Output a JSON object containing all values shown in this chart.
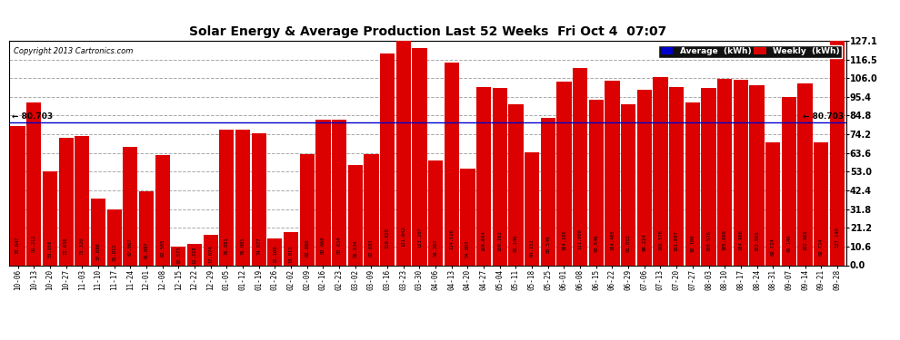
{
  "title": "Solar Energy & Average Production Last 52 Weeks  Fri Oct 4  07:07",
  "copyright": "Copyright 2013 Cartronics.com",
  "average_label": "Average  (kWh)",
  "weekly_label": "Weekly  (kWh)",
  "average_value": 80.703,
  "categories": [
    "10-06",
    "10-13",
    "10-20",
    "10-27",
    "11-03",
    "11-10",
    "11-17",
    "11-24",
    "12-01",
    "12-08",
    "12-15",
    "12-22",
    "12-29",
    "01-05",
    "01-12",
    "01-19",
    "01-26",
    "02-02",
    "02-09",
    "02-16",
    "02-23",
    "03-02",
    "03-09",
    "03-16",
    "03-23",
    "03-30",
    "04-06",
    "04-13",
    "04-20",
    "04-27",
    "05-04",
    "05-11",
    "05-18",
    "05-25",
    "06-01",
    "06-08",
    "06-15",
    "06-22",
    "06-29",
    "07-06",
    "07-13",
    "07-20",
    "07-27",
    "08-03",
    "08-10",
    "08-17",
    "08-24",
    "08-31",
    "09-07",
    "09-14",
    "09-21",
    "09-28"
  ],
  "values": [
    78.647,
    92.212,
    53.056,
    72.038,
    73.32,
    37.688,
    31.812,
    67.067,
    41.997,
    62.505,
    10.571,
    12.318,
    17.074,
    76.881,
    76.881,
    74.877,
    15.1,
    18.813,
    62.86,
    82.66,
    82.634,
    56.534,
    62.683,
    119.92,
    131.642,
    123.207,
    59.207,
    114.526,
    54.807,
    100.664,
    100.362,
    91.146,
    64.152,
    83.546,
    104.105,
    111.9,
    93.546,
    104.465,
    91.032,
    99.224,
    106.576,
    101.097,
    92.1,
    100.576,
    105.609,
    104.966,
    102.065,
    69.724,
    95.14,
    102.965,
    69.724,
    127.14
  ],
  "bar_color": "#dd0000",
  "average_line_color": "#0000cc",
  "bg_color": "#ffffff",
  "plot_bg_color": "#ffffff",
  "grid_color": "#aaaaaa",
  "ylim": [
    0,
    127.1
  ],
  "yticks": [
    0.0,
    10.6,
    21.2,
    31.8,
    42.4,
    53.0,
    63.6,
    74.2,
    84.8,
    95.4,
    106.0,
    116.5,
    127.1
  ],
  "figsize": [
    9.9,
    3.75
  ],
  "dpi": 100,
  "legend_bg": "#111111",
  "avg_legend_color": "#0000cc",
  "weekly_legend_color": "#dd0000"
}
